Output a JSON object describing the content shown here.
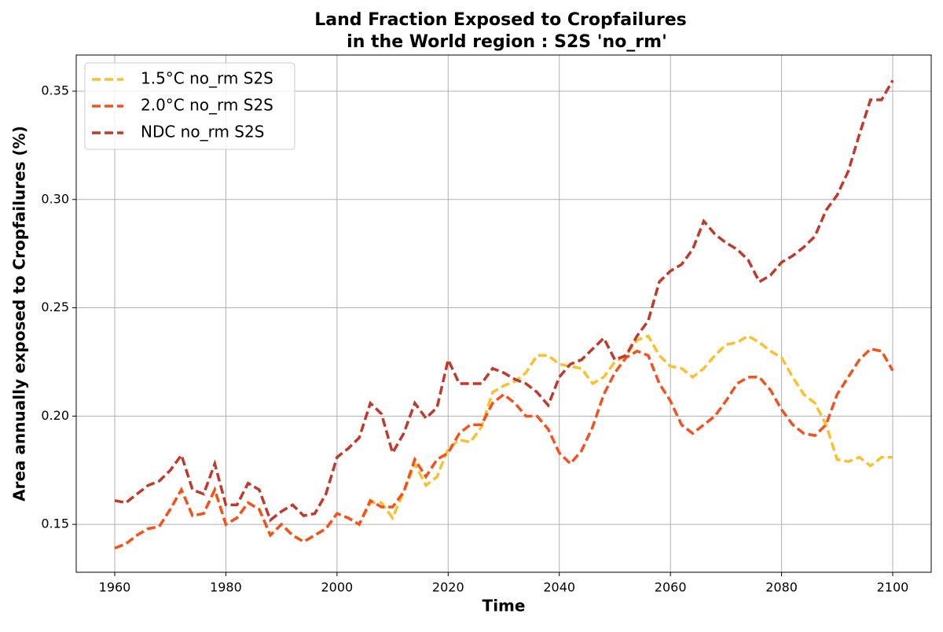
{
  "chart_data": {
    "type": "line",
    "title": [
      "Land Fraction Exposed to Cropfailures",
      "in the World region : S2S 'no_rm'"
    ],
    "x_label": "Time",
    "y_label": "Area annually exposed to Cropfailures (%)",
    "x": [
      1960,
      1962,
      1964,
      1966,
      1968,
      1970,
      1972,
      1974,
      1976,
      1978,
      1980,
      1982,
      1984,
      1986,
      1988,
      1990,
      1992,
      1994,
      1996,
      1998,
      2000,
      2002,
      2004,
      2006,
      2008,
      2010,
      2012,
      2014,
      2016,
      2018,
      2020,
      2022,
      2024,
      2026,
      2028,
      2030,
      2032,
      2034,
      2036,
      2038,
      2040,
      2042,
      2044,
      2046,
      2048,
      2050,
      2052,
      2054,
      2056,
      2058,
      2060,
      2062,
      2064,
      2066,
      2068,
      2070,
      2072,
      2074,
      2076,
      2078,
      2080,
      2082,
      2084,
      2086,
      2088,
      2090,
      2092,
      2094,
      2096,
      2098,
      2100
    ],
    "series": [
      {
        "name": "1.5°C no_rm S2S",
        "color": "#fbc02d",
        "values": [
          0.139,
          0.141,
          0.145,
          0.148,
          0.149,
          0.157,
          0.166,
          0.154,
          0.155,
          0.166,
          0.15,
          0.153,
          0.16,
          0.157,
          0.145,
          0.15,
          0.145,
          0.142,
          0.145,
          0.148,
          0.155,
          0.153,
          0.15,
          0.16,
          0.16,
          0.153,
          0.165,
          0.178,
          0.168,
          0.172,
          0.185,
          0.189,
          0.188,
          0.195,
          0.211,
          0.214,
          0.216,
          0.22,
          0.228,
          0.228,
          0.224,
          0.223,
          0.222,
          0.215,
          0.218,
          0.225,
          0.228,
          0.235,
          0.237,
          0.228,
          0.223,
          0.222,
          0.218,
          0.222,
          0.228,
          0.233,
          0.234,
          0.237,
          0.234,
          0.23,
          0.227,
          0.218,
          0.21,
          0.206,
          0.196,
          0.18,
          0.179,
          0.181,
          0.177,
          0.181,
          0.181
        ]
      },
      {
        "name": "2.0°C no_rm S2S",
        "color": "#f4511e",
        "values": [
          0.139,
          0.141,
          0.145,
          0.148,
          0.149,
          0.157,
          0.166,
          0.154,
          0.155,
          0.166,
          0.15,
          0.153,
          0.16,
          0.157,
          0.145,
          0.15,
          0.145,
          0.142,
          0.145,
          0.148,
          0.155,
          0.153,
          0.15,
          0.161,
          0.158,
          0.158,
          0.165,
          0.18,
          0.172,
          0.18,
          0.183,
          0.192,
          0.196,
          0.196,
          0.206,
          0.21,
          0.206,
          0.2,
          0.2,
          0.194,
          0.183,
          0.178,
          0.184,
          0.195,
          0.21,
          0.22,
          0.227,
          0.23,
          0.228,
          0.215,
          0.207,
          0.196,
          0.192,
          0.196,
          0.2,
          0.207,
          0.215,
          0.218,
          0.218,
          0.212,
          0.203,
          0.196,
          0.192,
          0.191,
          0.196,
          0.21,
          0.218,
          0.226,
          0.231,
          0.23,
          0.221
        ]
      },
      {
        "name": "NDC no_rm S2S",
        "color": "#c0392b",
        "values": [
          0.161,
          0.16,
          0.164,
          0.168,
          0.17,
          0.175,
          0.182,
          0.166,
          0.164,
          0.178,
          0.159,
          0.159,
          0.169,
          0.166,
          0.152,
          0.156,
          0.159,
          0.154,
          0.155,
          0.164,
          0.181,
          0.185,
          0.19,
          0.206,
          0.201,
          0.183,
          0.192,
          0.206,
          0.199,
          0.204,
          0.226,
          0.215,
          0.215,
          0.215,
          0.222,
          0.22,
          0.217,
          0.215,
          0.211,
          0.205,
          0.218,
          0.224,
          0.226,
          0.231,
          0.236,
          0.226,
          0.228,
          0.237,
          0.244,
          0.262,
          0.267,
          0.27,
          0.277,
          0.29,
          0.284,
          0.28,
          0.277,
          0.272,
          0.262,
          0.265,
          0.271,
          0.274,
          0.278,
          0.283,
          0.295,
          0.302,
          0.313,
          0.33,
          0.346,
          0.346,
          0.355
        ]
      }
    ],
    "xlim": [
      1953.07,
      2106.93
    ],
    "xticks": [
      1960,
      1980,
      2000,
      2020,
      2040,
      2060,
      2080,
      2100
    ],
    "ylim": [
      0.1279,
      0.3667
    ],
    "yticks": [
      0.15,
      {
        "value": 0.2,
        "label": "0.20"
      },
      0.25,
      {
        "value": 0.3,
        "label": "0.30"
      },
      0.35
    ],
    "grid": true,
    "legend": "upper left",
    "line_style": "dashed"
  }
}
